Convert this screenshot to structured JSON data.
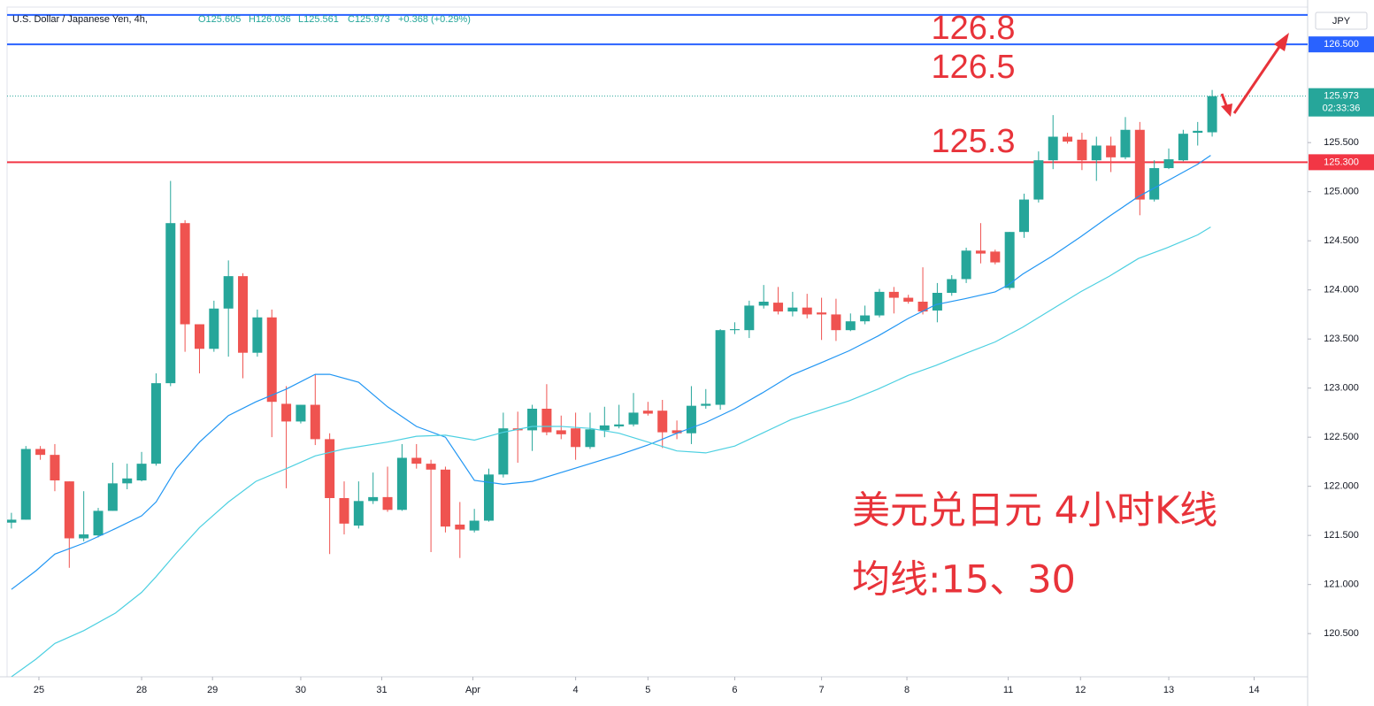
{
  "header": {
    "symbol": "U.S. Dollar / Japanese Yen, 4h,",
    "ohlc": [
      "O125.605",
      "H126.036",
      "L125.561",
      "C125.973",
      "+0.368 (+0.29%)"
    ],
    "currency": "JPY"
  },
  "annotations": [
    "126.8",
    "126.5",
    "125.3",
    "美元兑日元 4小时K线",
    "均线:15、30"
  ],
  "chart_data": {
    "type": "candlestick",
    "up_color": "#26a69a",
    "down_color": "#ef5350",
    "open": [
      121.63,
      121.66,
      122.38,
      122.32,
      122.05,
      121.47,
      121.5,
      121.75,
      122.03,
      122.06,
      122.23,
      123.05,
      124.68,
      123.65,
      123.4,
      123.81,
      124.14,
      123.36,
      123.72,
      122.84,
      122.66,
      122.83,
      122.48,
      121.88,
      121.6,
      121.85,
      121.89,
      121.76,
      122.29,
      122.23,
      122.17,
      121.61,
      121.55,
      121.65,
      122.12,
      122.59,
      122.57,
      122.79,
      122.57,
      122.59,
      122.4,
      122.57,
      122.61,
      122.63,
      122.77,
      122.77,
      122.57,
      122.54,
      122.82,
      122.83,
      123.59,
      123.59,
      123.84,
      123.87,
      123.78,
      123.82,
      123.77,
      123.75,
      123.59,
      123.68,
      123.74,
      123.98,
      123.92,
      123.88,
      123.79,
      123.97,
      124.11,
      124.4,
      124.39,
      124.02,
      124.59,
      124.92,
      125.32,
      125.56,
      125.53,
      125.32,
      125.47,
      125.35,
      125.63,
      124.92,
      125.24,
      125.32,
      125.6,
      125.605
    ],
    "high": [
      121.73,
      122.41,
      122.41,
      122.43,
      122.05,
      121.95,
      121.78,
      122.24,
      122.23,
      122.35,
      123.15,
      125.11,
      124.71,
      123.65,
      123.89,
      124.3,
      124.17,
      123.8,
      123.8,
      123.02,
      122.83,
      123.14,
      122.54,
      122.05,
      122.05,
      122.14,
      122.2,
      122.43,
      122.43,
      122.27,
      122.2,
      121.84,
      121.77,
      122.18,
      122.75,
      122.76,
      122.83,
      123.04,
      122.72,
      122.75,
      122.75,
      122.81,
      122.83,
      122.95,
      122.86,
      122.88,
      122.67,
      123.02,
      122.99,
      123.6,
      123.67,
      123.89,
      124.05,
      124.03,
      123.98,
      123.96,
      123.92,
      123.91,
      123.76,
      123.84,
      124.01,
      124.03,
      123.95,
      124.23,
      124.07,
      124.15,
      124.43,
      124.68,
      124.41,
      124.59,
      124.98,
      125.41,
      125.78,
      125.6,
      125.6,
      125.56,
      125.56,
      125.76,
      125.71,
      125.32,
      125.44,
      125.63,
      125.71,
      126.036
    ],
    "low": [
      121.57,
      121.66,
      122.27,
      121.95,
      121.17,
      121.44,
      121.48,
      121.75,
      121.97,
      122.05,
      122.21,
      123.02,
      123.37,
      123.15,
      123.37,
      123.32,
      123.1,
      123.32,
      122.5,
      121.98,
      122.64,
      122.42,
      121.31,
      121.51,
      121.57,
      121.82,
      121.74,
      121.75,
      122.18,
      121.33,
      121.53,
      121.27,
      121.53,
      121.64,
      122.09,
      122.24,
      122.36,
      122.52,
      122.48,
      122.27,
      122.38,
      122.5,
      122.59,
      122.61,
      122.72,
      122.39,
      122.48,
      122.43,
      122.79,
      122.78,
      123.55,
      123.51,
      123.81,
      123.75,
      123.73,
      123.71,
      123.49,
      123.48,
      123.58,
      123.65,
      123.72,
      123.76,
      123.86,
      123.75,
      123.67,
      123.94,
      124.07,
      124.27,
      124.26,
      124.0,
      124.53,
      124.89,
      125.23,
      125.49,
      125.22,
      125.11,
      125.2,
      125.33,
      124.76,
      124.9,
      125.23,
      125.31,
      125.47,
      125.561
    ],
    "close": [
      121.66,
      122.38,
      122.32,
      122.06,
      121.47,
      121.51,
      121.75,
      122.03,
      122.08,
      122.23,
      123.05,
      124.68,
      123.65,
      123.4,
      123.81,
      124.14,
      123.36,
      123.72,
      122.86,
      122.66,
      122.83,
      122.48,
      121.88,
      121.62,
      121.85,
      121.89,
      121.76,
      122.29,
      122.23,
      122.17,
      121.59,
      121.56,
      121.65,
      122.12,
      122.59,
      122.57,
      122.79,
      122.55,
      122.53,
      122.4,
      122.58,
      122.62,
      122.63,
      122.75,
      122.74,
      122.55,
      122.54,
      122.82,
      122.84,
      123.59,
      123.6,
      123.84,
      123.88,
      123.78,
      123.82,
      123.75,
      123.75,
      123.59,
      123.68,
      123.74,
      123.98,
      123.92,
      123.88,
      123.78,
      123.97,
      124.11,
      124.4,
      124.37,
      124.28,
      124.59,
      124.92,
      125.32,
      125.56,
      125.51,
      125.32,
      125.47,
      125.35,
      125.63,
      124.92,
      125.24,
      125.33,
      125.59,
      125.62,
      125.973
    ],
    "lines": [
      {
        "color": "#2196f3",
        "x": [
          0,
          1.7,
          3,
          5,
          7.2,
          9,
          10,
          11.4,
          13,
          15,
          16.9,
          19,
          21,
          22,
          24,
          26,
          28,
          30,
          32,
          34,
          36,
          38,
          40,
          42,
          44,
          46,
          48,
          50,
          51.9,
          53.9,
          56,
          57.9,
          59.9,
          62,
          63.9,
          65.9,
          68,
          68.9,
          69.9,
          71.9,
          73.9,
          75.9,
          77.9,
          79.9,
          82,
          82.9
        ],
        "values": [
          120.95,
          121.14,
          121.31,
          121.42,
          121.57,
          121.7,
          121.84,
          122.18,
          122.45,
          122.72,
          122.86,
          122.99,
          123.14,
          123.14,
          123.06,
          122.81,
          122.61,
          122.5,
          122.06,
          122.02,
          122.05,
          122.14,
          122.23,
          122.32,
          122.42,
          122.54,
          122.65,
          122.79,
          122.95,
          123.13,
          123.26,
          123.38,
          123.53,
          123.71,
          123.85,
          123.91,
          123.98,
          124.05,
          124.16,
          124.34,
          124.54,
          124.75,
          124.95,
          125.11,
          125.28,
          125.37
        ]
      },
      {
        "color": "#4dd0e1",
        "x": [
          0,
          1.7,
          3,
          5,
          7.2,
          9,
          10,
          11.4,
          13,
          15,
          16.9,
          19,
          21,
          23,
          26,
          28,
          30,
          32,
          34,
          36,
          38,
          40,
          42,
          44,
          46,
          48,
          50,
          51.9,
          53.9,
          56,
          57.9,
          59.9,
          62,
          63.9,
          65.9,
          68,
          69.9,
          71.9,
          73.9,
          75.9,
          77.9,
          79.9,
          82,
          82.9
        ],
        "values": [
          120.06,
          120.24,
          120.4,
          120.53,
          120.71,
          120.92,
          121.08,
          121.32,
          121.58,
          121.84,
          122.05,
          122.18,
          122.31,
          122.38,
          122.45,
          122.51,
          122.52,
          122.47,
          122.55,
          122.61,
          122.61,
          122.59,
          122.54,
          122.45,
          122.36,
          122.34,
          122.41,
          122.54,
          122.68,
          122.78,
          122.87,
          122.99,
          123.13,
          123.23,
          123.35,
          123.47,
          123.62,
          123.8,
          123.98,
          124.14,
          124.32,
          124.43,
          124.56,
          124.64
        ]
      }
    ],
    "hlines": [
      {
        "value": 126.8,
        "color": "#2962ff"
      },
      {
        "value": 126.5,
        "label": "126.500",
        "color": "#2962ff"
      },
      {
        "value": 125.3,
        "label": "125.300",
        "color": "#f23645"
      }
    ],
    "last_price": {
      "value": 125.973,
      "label": "125.973",
      "countdown": "02:33:36",
      "color": "#26a69a"
    },
    "xlim": [
      -0.3,
      89.6
    ],
    "xticks": [
      {
        "value": 1.9,
        "label": "25"
      },
      {
        "value": 9.0,
        "label": "28"
      },
      {
        "value": 13.9,
        "label": "29"
      },
      {
        "value": 20.0,
        "label": "30"
      },
      {
        "value": 25.6,
        "label": "31"
      },
      {
        "value": 31.9,
        "label": "Apr"
      },
      {
        "value": 39.0,
        "label": "4"
      },
      {
        "value": 44.0,
        "label": "5"
      },
      {
        "value": 50.0,
        "label": "6"
      },
      {
        "value": 56.0,
        "label": "7"
      },
      {
        "value": 61.9,
        "label": "8"
      },
      {
        "value": 68.9,
        "label": "11"
      },
      {
        "value": 73.9,
        "label": "12"
      },
      {
        "value": 80.0,
        "label": "13"
      },
      {
        "value": 85.9,
        "label": "14"
      }
    ],
    "ylim": [
      120.06,
      126.88
    ],
    "yticks": [
      {
        "value": 120.5,
        "label": "120.500"
      },
      {
        "value": 121.0,
        "label": "121.000"
      },
      {
        "value": 121.5,
        "label": "121.500"
      },
      {
        "value": 122.0,
        "label": "122.000"
      },
      {
        "value": 122.5,
        "label": "122.500"
      },
      {
        "value": 123.0,
        "label": "123.000"
      },
      {
        "value": 123.5,
        "label": "123.500"
      },
      {
        "value": 124.0,
        "label": "124.000"
      },
      {
        "value": 124.5,
        "label": "124.500"
      },
      {
        "value": 125.0,
        "label": "125.000"
      },
      {
        "value": 125.5,
        "label": "125.500"
      }
    ],
    "grid": false
  }
}
